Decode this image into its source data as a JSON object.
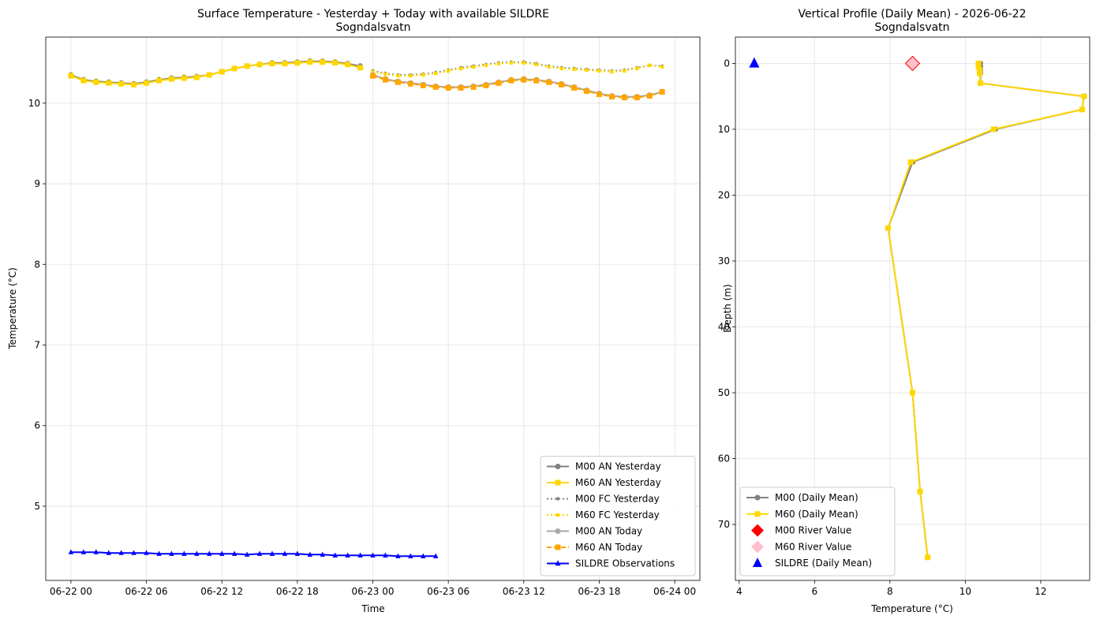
{
  "chart_data": [
    {
      "type": "line",
      "title": "Surface Temperature - Yesterday + Today with available SILDRE",
      "subtitle": "Sogndalsvatn",
      "xlabel": "Time",
      "ylabel": "Temperature (°C)",
      "xlim": [
        -2,
        50
      ],
      "ylim": [
        4.08,
        10.82
      ],
      "grid": true,
      "legend_position": "lower-right",
      "x_ticks": [
        {
          "value": 0,
          "label": "06-22 00"
        },
        {
          "value": 6,
          "label": "06-22 06"
        },
        {
          "value": 12,
          "label": "06-22 12"
        },
        {
          "value": 18,
          "label": "06-22 18"
        },
        {
          "value": 24,
          "label": "06-23 00"
        },
        {
          "value": 30,
          "label": "06-23 06"
        },
        {
          "value": 36,
          "label": "06-23 12"
        },
        {
          "value": 42,
          "label": "06-23 18"
        },
        {
          "value": 48,
          "label": "06-24 00"
        }
      ],
      "y_ticks": [
        5,
        6,
        7,
        8,
        9,
        10
      ],
      "series": [
        {
          "name": "M00 AN Yesterday",
          "color": "#808080",
          "style": "solid",
          "marker": "circle",
          "x": [
            0,
            1,
            2,
            3,
            4,
            5,
            6,
            7,
            8,
            9,
            10,
            11,
            12,
            13,
            14,
            15,
            16,
            17,
            18,
            19,
            20,
            21,
            22,
            23
          ],
          "y": [
            10.35,
            10.29,
            10.27,
            10.26,
            10.25,
            10.24,
            10.26,
            10.29,
            10.31,
            10.32,
            10.33,
            10.35,
            10.39,
            10.43,
            10.46,
            10.48,
            10.5,
            10.5,
            10.51,
            10.52,
            10.52,
            10.51,
            10.49,
            10.46
          ]
        },
        {
          "name": "M60 AN Yesterday",
          "color": "#ffd700",
          "style": "solid",
          "marker": "square",
          "x": [
            0,
            1,
            2,
            3,
            4,
            5,
            6,
            7,
            8,
            9,
            10,
            11,
            12,
            13,
            14,
            15,
            16,
            17,
            18,
            19,
            20,
            21,
            22,
            23
          ],
          "y": [
            10.34,
            10.28,
            10.26,
            10.25,
            10.24,
            10.23,
            10.25,
            10.28,
            10.3,
            10.31,
            10.32,
            10.35,
            10.39,
            10.43,
            10.46,
            10.48,
            10.49,
            10.49,
            10.5,
            10.51,
            10.51,
            10.5,
            10.48,
            10.44
          ]
        },
        {
          "name": "M00 FC Yesterday",
          "color": "#808080",
          "style": "dotted",
          "marker": "circle",
          "x": [
            24,
            25,
            26,
            27,
            28,
            29,
            30,
            31,
            32,
            33,
            34,
            35,
            36,
            37,
            38,
            39,
            40,
            41,
            42,
            43,
            44,
            45,
            46,
            47
          ],
          "y": [
            10.4,
            10.37,
            10.35,
            10.35,
            10.36,
            10.38,
            10.41,
            10.44,
            10.46,
            10.48,
            10.5,
            10.51,
            10.51,
            10.49,
            10.46,
            10.44,
            10.43,
            10.42,
            10.41,
            10.4,
            10.41,
            10.44,
            10.47,
            10.46
          ]
        },
        {
          "name": "M60 FC Yesterday",
          "color": "#ffd700",
          "style": "dotted",
          "marker": "square",
          "x": [
            24,
            25,
            26,
            27,
            28,
            29,
            30,
            31,
            32,
            33,
            34,
            35,
            36,
            37,
            38,
            39,
            40,
            41,
            42,
            43,
            44,
            45,
            46,
            47
          ],
          "y": [
            10.39,
            10.36,
            10.34,
            10.34,
            10.35,
            10.37,
            10.4,
            10.43,
            10.45,
            10.47,
            10.49,
            10.5,
            10.5,
            10.48,
            10.45,
            10.43,
            10.42,
            10.41,
            10.4,
            10.39,
            10.4,
            10.43,
            10.47,
            10.45
          ]
        },
        {
          "name": "M00 AN Today",
          "color": "#a9a9a9",
          "style": "solid",
          "marker": "circle",
          "x": [
            24,
            25,
            26,
            27,
            28,
            29,
            30,
            31,
            32,
            33,
            34,
            35,
            36,
            37,
            38,
            39,
            40,
            41,
            42,
            43,
            44,
            45,
            46,
            47
          ],
          "y": [
            10.35,
            10.3,
            10.27,
            10.25,
            10.23,
            10.21,
            10.2,
            10.2,
            10.21,
            10.23,
            10.26,
            10.29,
            10.3,
            10.29,
            10.27,
            10.24,
            10.2,
            10.16,
            10.12,
            10.09,
            10.08,
            10.08,
            10.1,
            10.14
          ]
        },
        {
          "name": "M60 AN Today",
          "color": "#ffa500",
          "style": "dashed",
          "marker": "square",
          "x": [
            24,
            25,
            26,
            27,
            28,
            29,
            30,
            31,
            32,
            33,
            34,
            35,
            36,
            37,
            38,
            39,
            40,
            41,
            42,
            43,
            44,
            45,
            46,
            47
          ],
          "y": [
            10.34,
            10.29,
            10.26,
            10.24,
            10.22,
            10.2,
            10.19,
            10.19,
            10.2,
            10.22,
            10.25,
            10.28,
            10.29,
            10.28,
            10.26,
            10.23,
            10.19,
            10.15,
            10.11,
            10.08,
            10.07,
            10.07,
            10.09,
            10.14
          ]
        },
        {
          "name": "SILDRE Observations",
          "color": "#0000ff",
          "style": "solid",
          "marker": "triangle",
          "x": [
            0,
            1,
            2,
            3,
            4,
            5,
            6,
            7,
            8,
            9,
            10,
            11,
            12,
            13,
            14,
            15,
            16,
            17,
            18,
            19,
            20,
            21,
            22,
            23,
            24,
            25,
            26,
            27,
            28,
            29
          ],
          "y": [
            4.43,
            4.43,
            4.43,
            4.42,
            4.42,
            4.42,
            4.42,
            4.41,
            4.41,
            4.41,
            4.41,
            4.41,
            4.41,
            4.41,
            4.4,
            4.41,
            4.41,
            4.41,
            4.41,
            4.4,
            4.4,
            4.39,
            4.39,
            4.39,
            4.39,
            4.39,
            4.38,
            4.38,
            4.38,
            4.38
          ]
        }
      ]
    },
    {
      "type": "line",
      "title": "Vertical Profile (Daily Mean) - 2026-06-22",
      "subtitle": "Sogndalsvatn",
      "xlabel": "Temperature (°C)",
      "ylabel": "Depth (m)",
      "xlim": [
        3.9,
        13.3
      ],
      "ylim": [
        78.5,
        -4
      ],
      "y_inverted": true,
      "grid": true,
      "legend_position": "lower-left",
      "x_ticks": [
        4,
        6,
        8,
        10,
        12
      ],
      "y_ticks": [
        0,
        10,
        20,
        30,
        40,
        50,
        60,
        70
      ],
      "series": [
        {
          "name": "M00 (Daily Mean)",
          "color": "#808080",
          "style": "solid",
          "marker": "circle",
          "temperature": [
            10.4,
            10.4,
            10.4,
            10.4,
            10.4,
            13.15,
            13.1,
            10.8,
            8.6,
            7.95,
            8.6,
            8.8,
            9.0
          ],
          "depth": [
            0,
            0.5,
            1,
            1.5,
            3,
            5,
            7,
            10,
            15,
            25,
            50,
            65,
            75
          ]
        },
        {
          "name": "M60 (Daily Mean)",
          "color": "#ffd700",
          "style": "solid",
          "marker": "square",
          "temperature": [
            10.35,
            10.35,
            10.38,
            10.38,
            10.4,
            13.15,
            13.1,
            10.75,
            8.55,
            7.95,
            8.6,
            8.8,
            9.0
          ],
          "depth": [
            0,
            0.5,
            1,
            1.5,
            3,
            5,
            7,
            10,
            15,
            25,
            50,
            65,
            75
          ]
        },
        {
          "name": "M00 River Value",
          "color": "#ff0000",
          "marker": "diamond",
          "temperature": [
            8.6
          ],
          "depth": [
            0
          ]
        },
        {
          "name": "M60 River Value",
          "color": "#ffc0cb",
          "marker": "diamond",
          "temperature": [
            8.6
          ],
          "depth": [
            0
          ]
        },
        {
          "name": "SILDRE (Daily Mean)",
          "color": "#0000ff",
          "marker": "triangle",
          "temperature": [
            4.4
          ],
          "depth": [
            0
          ]
        }
      ]
    }
  ]
}
